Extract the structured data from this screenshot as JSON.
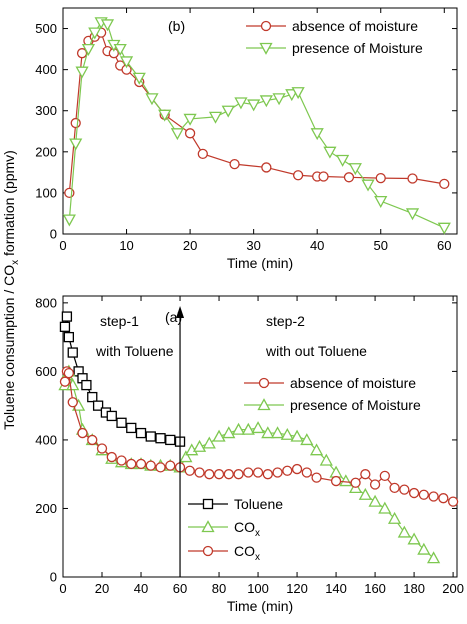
{
  "shared_ylabel": "Toluene consumption / CO",
  "shared_ylabel_sub": "x",
  "shared_ylabel_tail": " formation (ppmv)",
  "chart_data": [
    {
      "type": "line",
      "panel_label": "(b)",
      "xlabel": "Time (min)",
      "ylabel": "",
      "xlim": [
        0,
        62
      ],
      "ylim": [
        0,
        550
      ],
      "xticks": [
        0,
        10,
        20,
        30,
        40,
        50,
        60
      ],
      "yticks": [
        0,
        100,
        200,
        300,
        400,
        500
      ],
      "legend_position": "top-right",
      "series": [
        {
          "name": "absence of moisture",
          "marker": "circle",
          "color": "#c0392b",
          "x": [
            1,
            2,
            3,
            4,
            5,
            6,
            7,
            8,
            9,
            10,
            12,
            16,
            20,
            22,
            27,
            32,
            37,
            40,
            41,
            45,
            50,
            55,
            60
          ],
          "y": [
            100,
            270,
            440,
            470,
            480,
            490,
            445,
            440,
            410,
            400,
            370,
            290,
            245,
            195,
            170,
            162,
            143,
            140,
            140,
            138,
            136,
            135,
            122
          ]
        },
        {
          "name": "presence of Moisture",
          "marker": "triangle-down",
          "color": "#7ec850",
          "x": [
            1,
            2,
            3,
            4,
            5,
            6,
            7,
            8,
            9,
            10,
            12,
            14,
            16,
            18,
            20,
            24,
            26,
            28,
            30,
            32,
            34,
            36,
            37,
            40,
            42,
            44,
            46,
            48,
            50,
            55,
            60
          ],
          "y": [
            35,
            220,
            395,
            450,
            490,
            515,
            510,
            460,
            450,
            420,
            380,
            330,
            290,
            245,
            280,
            285,
            300,
            320,
            315,
            325,
            330,
            340,
            345,
            245,
            200,
            180,
            160,
            120,
            80,
            50,
            15
          ]
        }
      ]
    },
    {
      "type": "line",
      "panel_label": "(a)",
      "xlabel": "Time (min)",
      "ylabel": "",
      "xlim": [
        0,
        202
      ],
      "ylim": [
        0,
        820
      ],
      "xticks": [
        0,
        20,
        40,
        60,
        80,
        100,
        120,
        140,
        160,
        180,
        200
      ],
      "yticks": [
        0,
        200,
        400,
        600,
        800
      ],
      "annotations": [
        {
          "text": "step-1"
        },
        {
          "text": "with Toluene"
        },
        {
          "text": "step-2"
        },
        {
          "text": "with out Toluene"
        }
      ],
      "divider_x": 60,
      "legend_top": [
        {
          "name": "absence of moisture",
          "marker": "circle",
          "color": "#c0392b"
        },
        {
          "name": "presence of Moisture",
          "marker": "triangle-up",
          "color": "#7ec850"
        }
      ],
      "legend_bottom": [
        {
          "name": "Toluene",
          "marker": "square",
          "color": "#000000"
        },
        {
          "name": "CO",
          "sub": "x",
          "marker": "triangle-up",
          "color": "#7ec850"
        },
        {
          "name": "CO",
          "sub": "x",
          "marker": "circle",
          "color": "#c0392b"
        }
      ],
      "series": [
        {
          "name": "Toluene",
          "marker": "square",
          "color": "#000000",
          "x": [
            1,
            2,
            3,
            5,
            8,
            10,
            12,
            15,
            18,
            22,
            25,
            30,
            35,
            40,
            45,
            50,
            55,
            60
          ],
          "y": [
            730,
            760,
            700,
            655,
            600,
            580,
            560,
            525,
            500,
            480,
            470,
            450,
            435,
            420,
            410,
            405,
            400,
            395
          ]
        },
        {
          "name": "CO",
          "sub": "x",
          "marker": "triangle-up",
          "color": "#7ec850",
          "x": [
            1,
            2,
            3,
            5,
            8,
            10,
            15,
            20,
            25,
            30,
            35,
            40,
            45,
            50,
            55,
            60,
            63,
            66,
            70,
            75,
            80,
            85,
            90,
            95,
            100,
            105,
            110,
            115,
            120,
            125,
            130,
            135,
            140,
            145,
            150,
            155,
            160,
            165,
            170,
            175,
            180,
            185,
            190
          ],
          "y": [
            560,
            590,
            600,
            560,
            500,
            430,
            400,
            370,
            345,
            335,
            330,
            330,
            325,
            325,
            325,
            320,
            350,
            370,
            380,
            390,
            410,
            420,
            430,
            430,
            435,
            420,
            420,
            415,
            410,
            400,
            370,
            340,
            305,
            280,
            260,
            240,
            220,
            200,
            170,
            130,
            110,
            80,
            55
          ]
        },
        {
          "name": "CO",
          "sub": "x",
          "marker": "circle",
          "color": "#c0392b",
          "x": [
            1,
            2,
            3,
            5,
            10,
            15,
            20,
            25,
            30,
            35,
            40,
            45,
            50,
            55,
            60,
            65,
            70,
            75,
            80,
            85,
            90,
            95,
            100,
            105,
            110,
            115,
            120,
            125,
            130,
            140,
            150,
            155,
            160,
            165,
            170,
            175,
            180,
            185,
            190,
            195,
            200
          ],
          "y": [
            570,
            600,
            595,
            510,
            420,
            400,
            375,
            350,
            340,
            330,
            330,
            325,
            320,
            325,
            320,
            310,
            305,
            300,
            300,
            300,
            300,
            305,
            305,
            300,
            305,
            310,
            315,
            305,
            290,
            280,
            275,
            300,
            270,
            295,
            260,
            255,
            245,
            240,
            235,
            230,
            220
          ]
        }
      ]
    }
  ]
}
